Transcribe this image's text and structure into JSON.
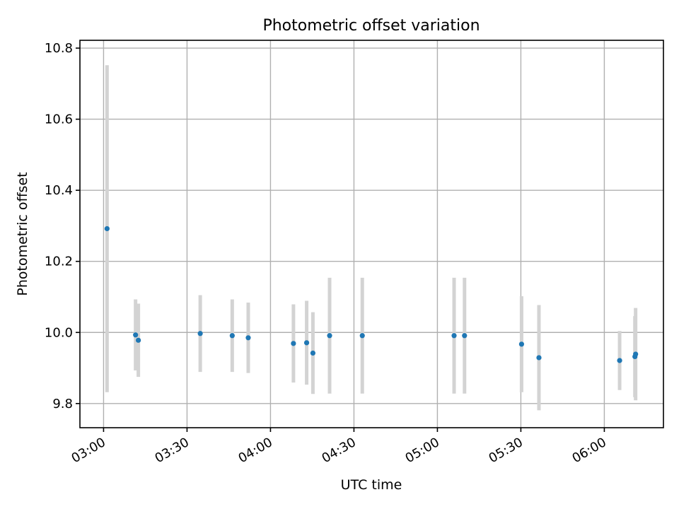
{
  "chart_data": {
    "type": "scatter",
    "title": "Photometric offset variation",
    "xlabel": "UTC time",
    "ylabel": "Photometric offset",
    "x_axis_type": "time",
    "xlim": [
      "02:51:30",
      "06:21:15"
    ],
    "ylim": [
      9.732,
      10.822
    ],
    "x_ticks": [
      {
        "time": "03:00:00",
        "label": "03:00"
      },
      {
        "time": "03:30:00",
        "label": "03:30"
      },
      {
        "time": "04:00:00",
        "label": "04:00"
      },
      {
        "time": "04:30:00",
        "label": "04:30"
      },
      {
        "time": "05:00:00",
        "label": "05:00"
      },
      {
        "time": "05:30:00",
        "label": "05:30"
      },
      {
        "time": "06:00:00",
        "label": "06:00"
      }
    ],
    "y_ticks": [
      {
        "value": 9.8,
        "label": "9.8"
      },
      {
        "value": 10.0,
        "label": "10.0"
      },
      {
        "value": 10.2,
        "label": "10.2"
      },
      {
        "value": 10.4,
        "label": "10.4"
      },
      {
        "value": 10.6,
        "label": "10.6"
      },
      {
        "value": 10.8,
        "label": "10.8"
      }
    ],
    "grid": true,
    "point_color": "#1f77b4",
    "errorbar_color": "#d3d3d3",
    "series": [
      {
        "points": [
          {
            "x": "03:01:15",
            "y": 10.292,
            "yerr": 0.46
          },
          {
            "x": "03:11:30",
            "y": 9.993,
            "yerr": 0.1
          },
          {
            "x": "03:12:30",
            "y": 9.978,
            "yerr": 0.103
          },
          {
            "x": "03:34:45",
            "y": 9.997,
            "yerr": 0.108
          },
          {
            "x": "03:46:15",
            "y": 9.991,
            "yerr": 0.102
          },
          {
            "x": "03:52:00",
            "y": 9.985,
            "yerr": 0.099
          },
          {
            "x": "04:08:15",
            "y": 9.969,
            "yerr": 0.11
          },
          {
            "x": "04:13:00",
            "y": 9.971,
            "yerr": 0.118
          },
          {
            "x": "04:15:15",
            "y": 9.942,
            "yerr": 0.115
          },
          {
            "x": "04:21:15",
            "y": 9.991,
            "yerr": 0.163
          },
          {
            "x": "04:33:00",
            "y": 9.991,
            "yerr": 0.163
          },
          {
            "x": "05:06:00",
            "y": 9.991,
            "yerr": 0.163
          },
          {
            "x": "05:09:45",
            "y": 9.991,
            "yerr": 0.163
          },
          {
            "x": "05:30:15",
            "y": 9.967,
            "yerr": 0.135
          },
          {
            "x": "05:36:30",
            "y": 9.929,
            "yerr": 0.148
          },
          {
            "x": "06:05:30",
            "y": 9.921,
            "yerr": 0.083
          },
          {
            "x": "06:11:00",
            "y": 9.932,
            "yerr": 0.114
          },
          {
            "x": "06:11:15",
            "y": 9.939,
            "yerr": 0.13
          }
        ]
      }
    ]
  }
}
